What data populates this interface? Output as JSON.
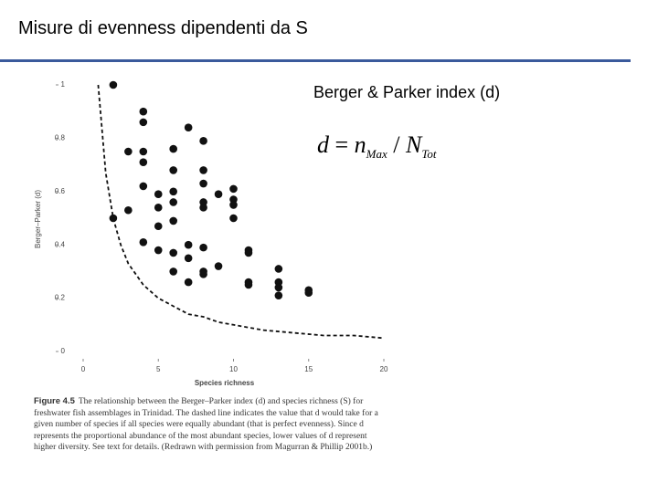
{
  "header": {
    "title": "Misure di evenness dipendenti da S"
  },
  "subtitle": "Berger & Parker index (d)",
  "formula": {
    "lhs": "d",
    "eq": "=",
    "num": "n",
    "num_sub": "Max",
    "div": "/",
    "den": "N",
    "den_sub": "Tot"
  },
  "chart_data": {
    "type": "scatter",
    "x_label": "Species richness",
    "y_label": "Berger–Parker (d)",
    "xlim": [
      0,
      20
    ],
    "ylim": [
      0,
      1
    ],
    "xticks": [
      0,
      5,
      10,
      15,
      20
    ],
    "yticks": [
      0,
      0.2,
      0.4,
      0.6,
      0.8,
      1
    ],
    "series": [
      {
        "color": "#111111",
        "x": [
          2,
          2,
          3,
          3,
          4,
          4,
          4,
          4,
          4,
          4,
          5,
          5,
          5,
          5,
          6,
          6,
          6,
          6,
          6,
          6,
          6,
          7,
          7,
          7,
          7,
          8,
          8,
          8,
          8,
          8,
          8,
          8,
          8,
          9,
          9,
          10,
          10,
          10,
          10,
          11,
          11,
          11,
          11,
          13,
          13,
          13,
          13,
          15,
          15
        ],
        "values": [
          1.0,
          0.5,
          0.53,
          0.75,
          0.9,
          0.86,
          0.75,
          0.71,
          0.62,
          0.41,
          0.59,
          0.54,
          0.47,
          0.38,
          0.76,
          0.68,
          0.6,
          0.56,
          0.49,
          0.37,
          0.3,
          0.84,
          0.4,
          0.35,
          0.26,
          0.79,
          0.68,
          0.63,
          0.56,
          0.54,
          0.39,
          0.3,
          0.29,
          0.59,
          0.32,
          0.61,
          0.57,
          0.55,
          0.5,
          0.38,
          0.37,
          0.26,
          0.25,
          0.31,
          0.26,
          0.24,
          0.21,
          0.23,
          0.22
        ]
      },
      {
        "type": "line",
        "line_style": "dashed",
        "color": "#111111",
        "x": [
          1,
          1.5,
          2,
          2.5,
          3,
          4,
          5,
          6,
          7,
          8,
          9,
          10,
          12,
          14,
          16,
          18,
          20
        ],
        "values": [
          1,
          0.67,
          0.5,
          0.4,
          0.33,
          0.25,
          0.2,
          0.17,
          0.14,
          0.13,
          0.11,
          0.1,
          0.08,
          0.07,
          0.06,
          0.06,
          0.05
        ]
      }
    ],
    "caption": {
      "label": "Figure 4.5",
      "text": "The relationship between the Berger–Parker index (d) and species richness (S) for freshwater fish assemblages in Trinidad. The dashed line indicates the value that d would take for a given number of species if all species were equally abundant (that is perfect evenness). Since d represents the proportional abundance of the most abundant species, lower values of d represent higher diversity. See text for details. (Redrawn with permission from Magurran & Phillip 2001b.)"
    }
  }
}
